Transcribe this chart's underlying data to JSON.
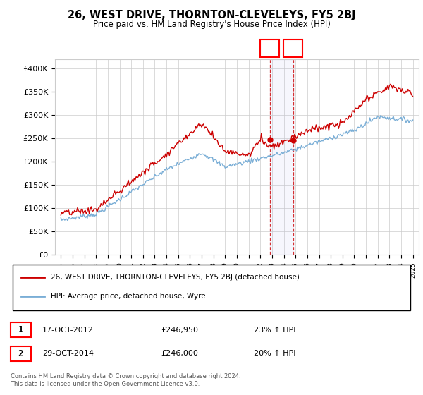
{
  "title": "26, WEST DRIVE, THORNTON-CLEVELEYS, FY5 2BJ",
  "subtitle": "Price paid vs. HM Land Registry's House Price Index (HPI)",
  "ylabel_ticks": [
    "£0",
    "£50K",
    "£100K",
    "£150K",
    "£200K",
    "£250K",
    "£300K",
    "£350K",
    "£400K"
  ],
  "ytick_values": [
    0,
    50000,
    100000,
    150000,
    200000,
    250000,
    300000,
    350000,
    400000
  ],
  "ylim": [
    0,
    420000
  ],
  "hpi_color": "#7aaed6",
  "price_color": "#cc0000",
  "sale1_date": "17-OCT-2012",
  "sale1_price": "£246,950",
  "sale1_hpi": "23% ↑ HPI",
  "sale2_date": "29-OCT-2014",
  "sale2_price": "£246,000",
  "sale2_hpi": "20% ↑ HPI",
  "legend_label1": "26, WEST DRIVE, THORNTON-CLEVELEYS, FY5 2BJ (detached house)",
  "legend_label2": "HPI: Average price, detached house, Wyre",
  "footer": "Contains HM Land Registry data © Crown copyright and database right 2024.\nThis data is licensed under the Open Government Licence v3.0.",
  "sale1_year": 2012.8,
  "sale2_year": 2014.8,
  "sale1_price_val": 246950,
  "sale2_price_val": 246000
}
